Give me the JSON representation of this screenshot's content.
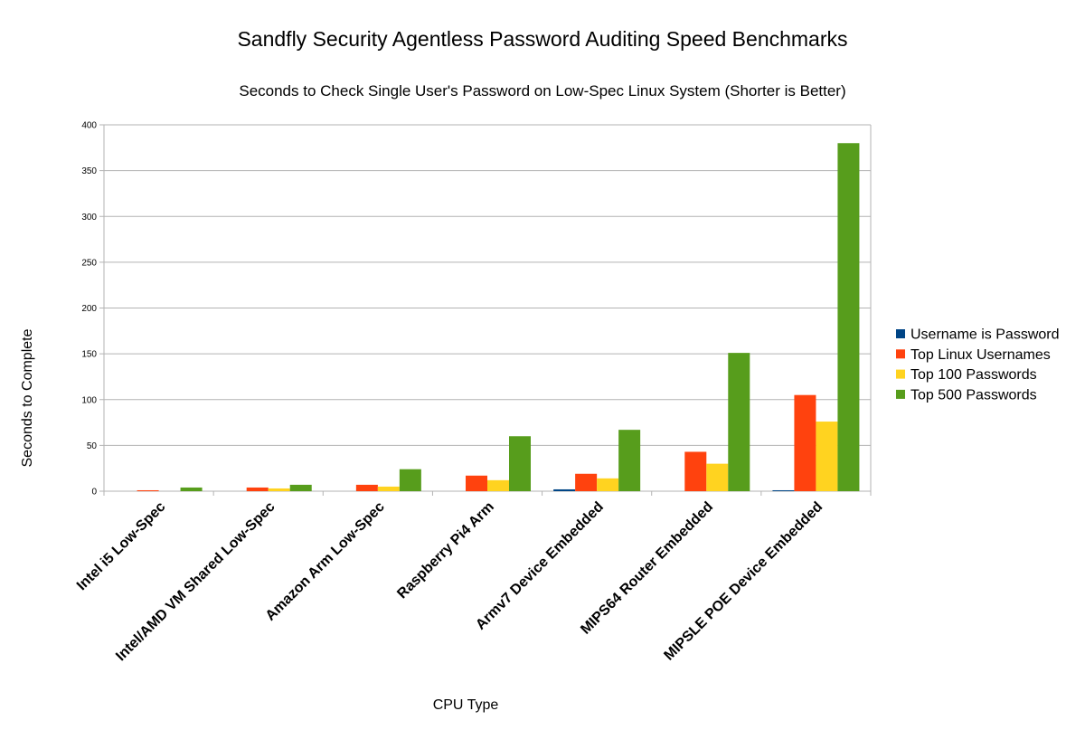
{
  "chart_data": {
    "type": "bar",
    "title": "Sandfly Security Agentless Password Auditing Speed Benchmarks",
    "subtitle": "Seconds to Check Single User's Password on Low-Spec Linux System (Shorter is Better)",
    "xlabel": "CPU Type",
    "ylabel": "Seconds to Complete",
    "ylim": [
      0,
      400
    ],
    "yticks": [
      "0",
      "50",
      "100",
      "150",
      "200",
      "250",
      "300",
      "350",
      "400"
    ],
    "grid": true,
    "legend": "right",
    "categories": [
      "Intel i5 Low-Spec",
      "Intel/AMD VM Shared Low-Spec",
      "Amazon Arm Low-Spec",
      "Raspberry Pi4 Arm",
      "Armv7 Device Embedded",
      "MIPS64 Router Embedded",
      "MIPSLE POE Device Embedded"
    ],
    "series": [
      {
        "name": "Username is Password",
        "color": "#004586",
        "values": [
          0,
          0,
          0,
          0,
          2,
          0,
          1
        ]
      },
      {
        "name": "Top Linux Usernames",
        "color": "#ff420e",
        "values": [
          1,
          4,
          7,
          17,
          19,
          43,
          105
        ]
      },
      {
        "name": "Top 100 Passwords",
        "color": "#ffd320",
        "values": [
          0,
          3,
          5,
          12,
          14,
          30,
          76
        ]
      },
      {
        "name": "Top 500 Passwords",
        "color": "#579d1c",
        "values": [
          4,
          7,
          24,
          60,
          67,
          151,
          380
        ]
      }
    ]
  }
}
